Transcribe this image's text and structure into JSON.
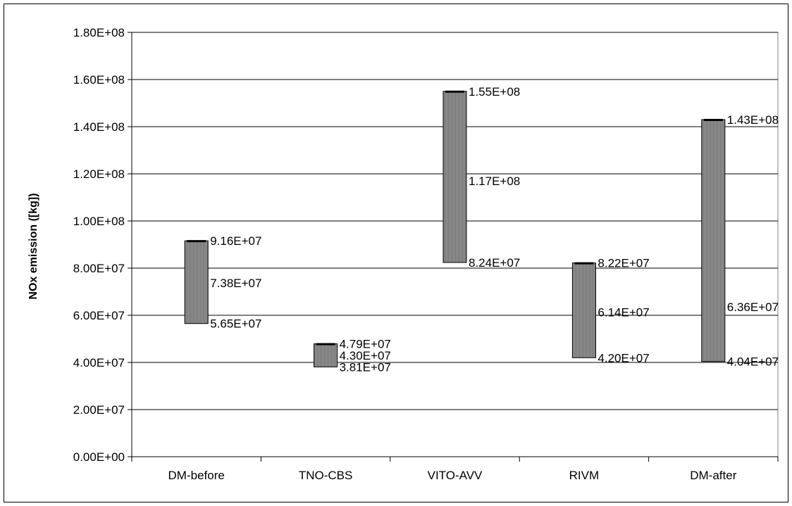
{
  "chart_data": {
    "type": "range-bar",
    "title": "",
    "xlabel": "",
    "ylabel": "NOx emission ([kg])",
    "ylim": [
      0,
      180000000
    ],
    "ytick_step": 20000000,
    "ytick_labels": [
      "0.00E+00",
      "2.00E+07",
      "4.00E+07",
      "6.00E+07",
      "8.00E+07",
      "1.00E+08",
      "1.20E+08",
      "1.40E+08",
      "1.60E+08",
      "1.80E+08"
    ],
    "grid": true,
    "legend": "none",
    "bar_color": "#8c8c8c",
    "categories": [
      "DM-before",
      "TNO-CBS",
      "VITO-AVV",
      "RIVM",
      "DM-after"
    ],
    "series": [
      {
        "low": [
          56500000,
          38100000,
          82400000,
          42000000,
          40400000
        ],
        "mid": [
          73800000,
          43000000,
          117000000,
          61400000,
          63600000
        ],
        "high": [
          91600000,
          47900000,
          155000000,
          82200000,
          143000000
        ],
        "low_labels": [
          "5.65E+07",
          "3.81E+07",
          "8.24E+07",
          "4.20E+07",
          "4.04E+07"
        ],
        "mid_labels": [
          "7.38E+07",
          "4.30E+07",
          "1.17E+08",
          "6.14E+07",
          "6.36E+07"
        ],
        "high_labels": [
          "9.16E+07",
          "4.79E+07",
          "1.55E+08",
          "8.22E+07",
          "1.43E+08"
        ]
      }
    ]
  }
}
